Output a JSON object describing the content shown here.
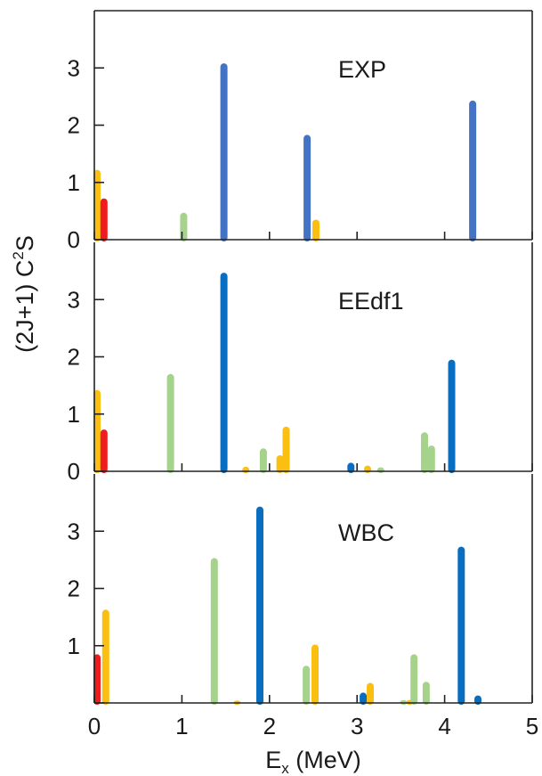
{
  "chart_data": {
    "type": "bar",
    "xlabel": "E",
    "xlabel_sub": "x",
    "xlabel_units": " (MeV)",
    "ylabel": "(2J+1) C",
    "ylabel_sup": "2",
    "ylabel_tail": "S",
    "xlim": [
      0,
      5
    ],
    "x_ticks": [
      "0",
      "1",
      "2",
      "3",
      "4",
      "5"
    ],
    "ylim": [
      0,
      4
    ],
    "y_ticks": [
      "0",
      "1",
      "2",
      "3"
    ],
    "colors": {
      "red": "#ee1c1c",
      "orange": "#fbbf12",
      "green": "#a5d38b",
      "blue_exp": "#4472c4",
      "blue": "#0a6ec0"
    },
    "panels": [
      {
        "label": "EXP",
        "bars": [
          {
            "x": 0.03,
            "y": 1.22,
            "color": "orange"
          },
          {
            "x": 0.11,
            "y": 0.72,
            "color": "red"
          },
          {
            "x": 1.02,
            "y": 0.47,
            "color": "green"
          },
          {
            "x": 1.48,
            "y": 3.08,
            "color": "blue_exp"
          },
          {
            "x": 2.43,
            "y": 1.83,
            "color": "blue_exp"
          },
          {
            "x": 2.53,
            "y": 0.35,
            "color": "orange"
          },
          {
            "x": 4.32,
            "y": 2.43,
            "color": "blue_exp"
          }
        ]
      },
      {
        "label": "EEdf1",
        "bars": [
          {
            "x": 0.03,
            "y": 1.42,
            "color": "orange"
          },
          {
            "x": 0.11,
            "y": 0.73,
            "color": "red"
          },
          {
            "x": 0.87,
            "y": 1.7,
            "color": "green"
          },
          {
            "x": 1.48,
            "y": 3.47,
            "color": "blue"
          },
          {
            "x": 1.73,
            "y": 0.08,
            "color": "orange"
          },
          {
            "x": 1.93,
            "y": 0.4,
            "color": "green"
          },
          {
            "x": 2.12,
            "y": 0.28,
            "color": "orange"
          },
          {
            "x": 2.19,
            "y": 0.78,
            "color": "orange"
          },
          {
            "x": 2.93,
            "y": 0.15,
            "color": "blue"
          },
          {
            "x": 3.12,
            "y": 0.1,
            "color": "orange"
          },
          {
            "x": 3.27,
            "y": 0.07,
            "color": "green"
          },
          {
            "x": 3.77,
            "y": 0.68,
            "color": "green"
          },
          {
            "x": 3.85,
            "y": 0.45,
            "color": "green"
          },
          {
            "x": 4.08,
            "y": 1.95,
            "color": "blue"
          }
        ]
      },
      {
        "label": "WBC",
        "bars": [
          {
            "x": 0.03,
            "y": 0.85,
            "color": "red"
          },
          {
            "x": 0.13,
            "y": 1.63,
            "color": "orange"
          },
          {
            "x": 1.37,
            "y": 2.53,
            "color": "green"
          },
          {
            "x": 1.63,
            "y": 0.04,
            "color": "orange"
          },
          {
            "x": 1.89,
            "y": 3.43,
            "color": "blue"
          },
          {
            "x": 2.42,
            "y": 0.65,
            "color": "green"
          },
          {
            "x": 2.52,
            "y": 1.02,
            "color": "orange"
          },
          {
            "x": 3.07,
            "y": 0.18,
            "color": "blue"
          },
          {
            "x": 3.15,
            "y": 0.35,
            "color": "orange"
          },
          {
            "x": 3.53,
            "y": 0.05,
            "color": "green"
          },
          {
            "x": 3.6,
            "y": 0.05,
            "color": "orange"
          },
          {
            "x": 3.65,
            "y": 0.85,
            "color": "green"
          },
          {
            "x": 3.79,
            "y": 0.37,
            "color": "green"
          },
          {
            "x": 4.19,
            "y": 2.73,
            "color": "blue"
          },
          {
            "x": 4.38,
            "y": 0.13,
            "color": "blue"
          }
        ]
      }
    ]
  }
}
